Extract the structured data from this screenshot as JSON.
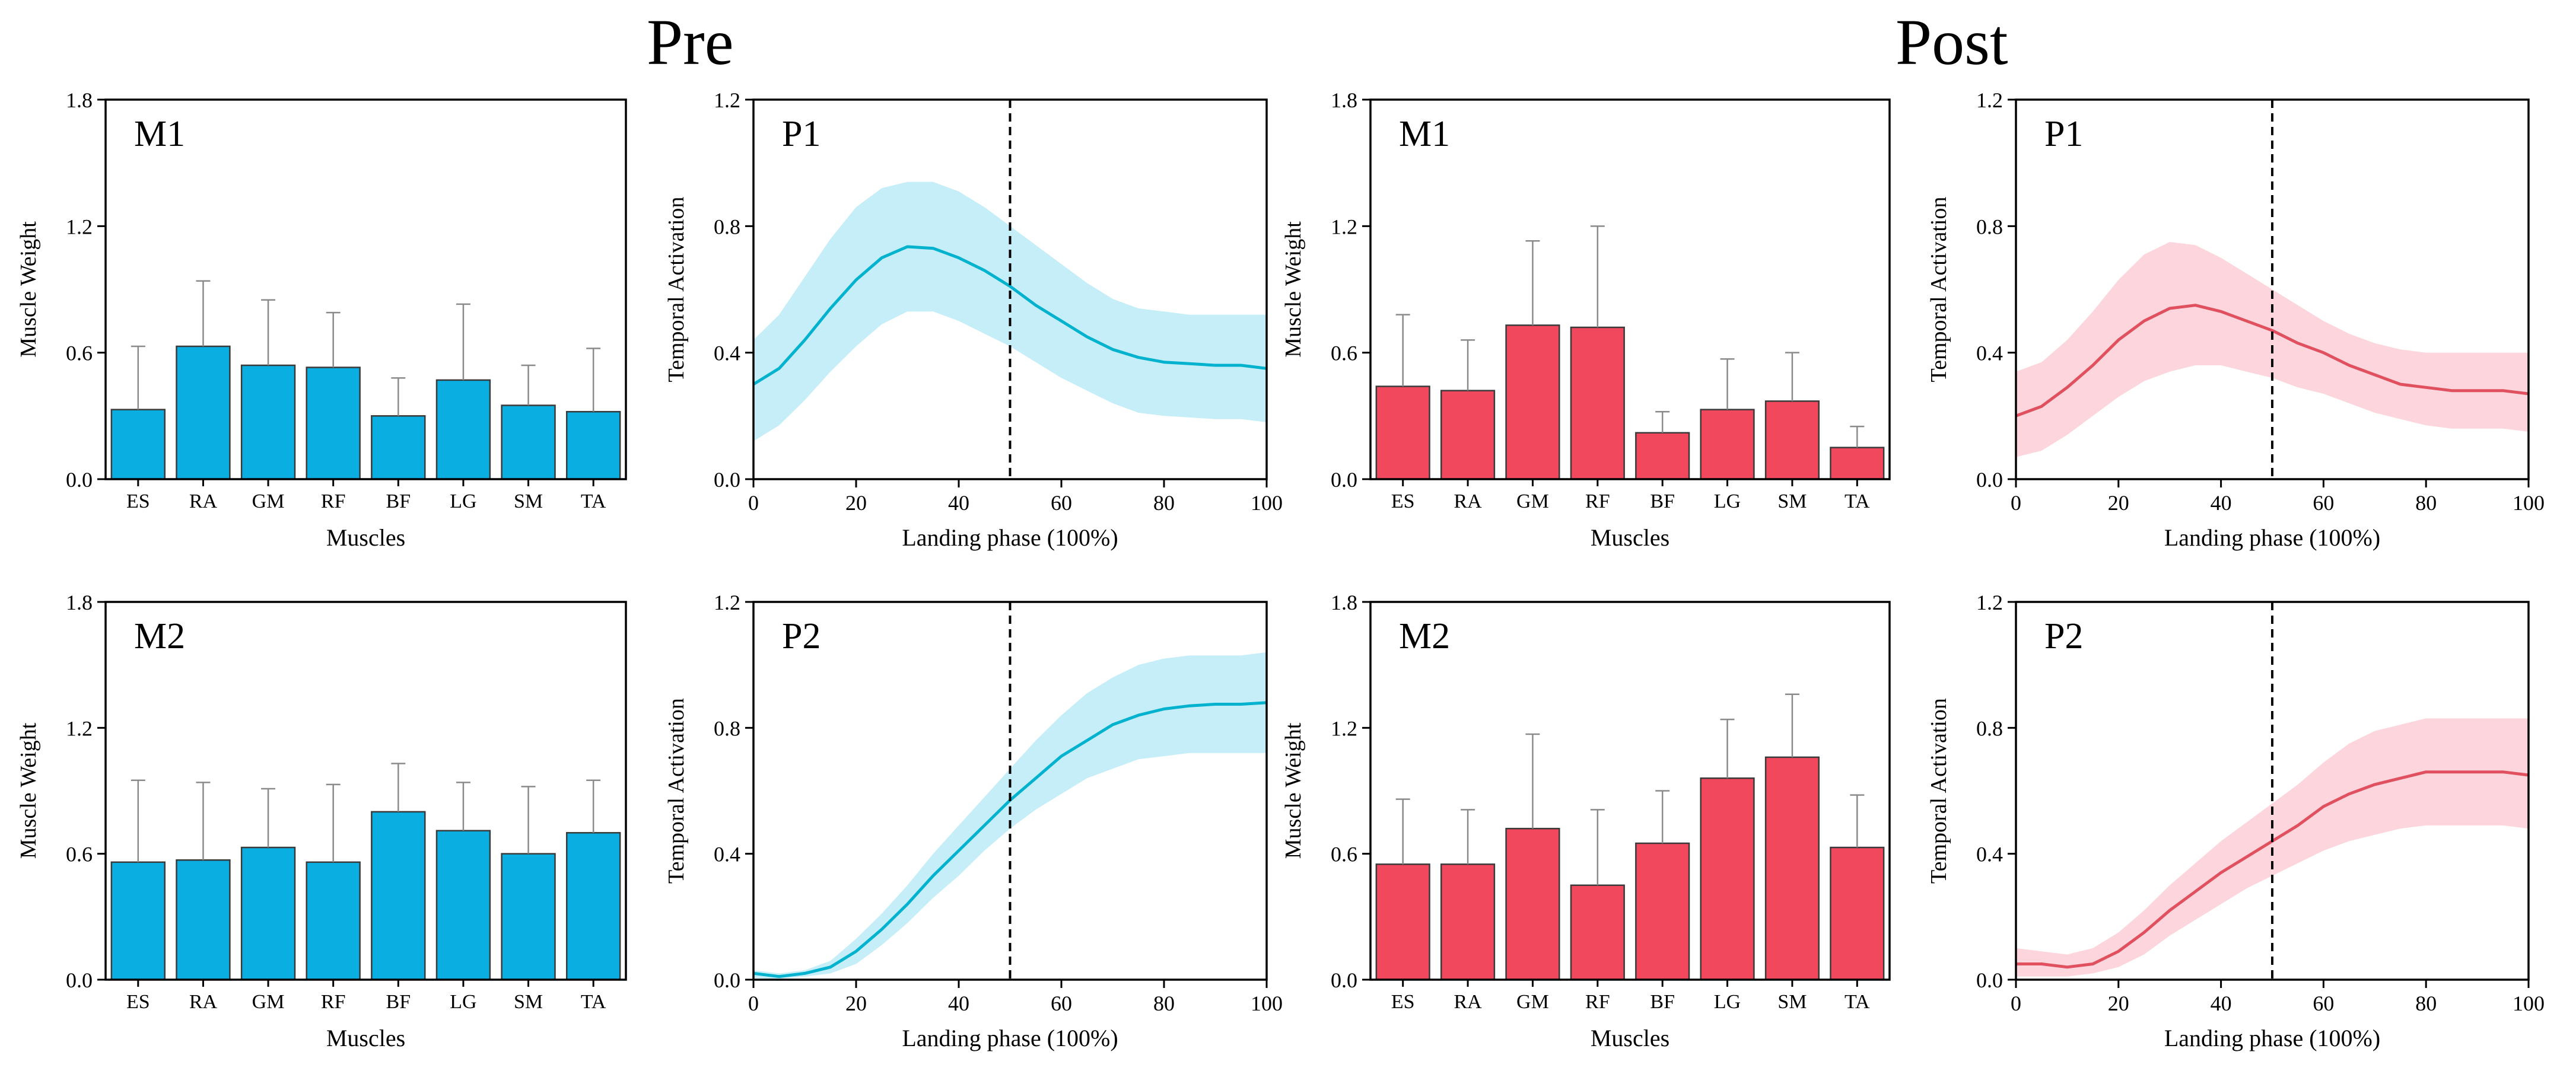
{
  "figure": {
    "group_titles": [
      "Pre",
      "Post"
    ]
  },
  "colors": {
    "pre_bar": "#0AAEE0",
    "pre_line": "#00B2CE",
    "pre_band": "#C6EEF8",
    "post_bar": "#F2485E",
    "post_line": "#E0505E",
    "post_band": "#FCD6DC"
  },
  "chart_data": [
    {
      "type": "bar",
      "group": "Pre",
      "title": "M1",
      "xlabel": "Muscles",
      "ylabel": "Muscle Weight",
      "ylim": [
        0,
        1.8
      ],
      "yticks": [
        "0.0",
        "0.6",
        "1.2",
        "1.8"
      ],
      "categories": [
        "ES",
        "RA",
        "GM",
        "RF",
        "BF",
        "LG",
        "SM",
        "TA"
      ],
      "values": [
        0.33,
        0.63,
        0.54,
        0.53,
        0.3,
        0.47,
        0.35,
        0.32
      ],
      "errors": [
        0.3,
        0.31,
        0.31,
        0.26,
        0.18,
        0.36,
        0.19,
        0.3
      ]
    },
    {
      "type": "line",
      "group": "Pre",
      "title": "P1",
      "xlabel": "Landing phase (100%)",
      "ylabel": "Temporal Activation",
      "xlim": [
        0,
        100
      ],
      "ylim": [
        0,
        1.2
      ],
      "xticks": [
        "0",
        "20",
        "40",
        "60",
        "80",
        "100"
      ],
      "yticks": [
        "0.0",
        "0.4",
        "0.8",
        "1.2"
      ],
      "vline": 50,
      "x": [
        0,
        5,
        10,
        15,
        20,
        25,
        30,
        35,
        40,
        45,
        50,
        55,
        60,
        65,
        70,
        75,
        80,
        85,
        90,
        95,
        100
      ],
      "mean": [
        0.3,
        0.35,
        0.44,
        0.54,
        0.63,
        0.7,
        0.735,
        0.73,
        0.7,
        0.66,
        0.61,
        0.55,
        0.5,
        0.45,
        0.41,
        0.385,
        0.37,
        0.365,
        0.36,
        0.36,
        0.35
      ],
      "upper": [
        0.44,
        0.52,
        0.64,
        0.76,
        0.86,
        0.92,
        0.94,
        0.94,
        0.91,
        0.86,
        0.8,
        0.74,
        0.68,
        0.62,
        0.57,
        0.54,
        0.53,
        0.52,
        0.52,
        0.52,
        0.52
      ],
      "lower": [
        0.12,
        0.17,
        0.25,
        0.34,
        0.42,
        0.49,
        0.53,
        0.53,
        0.5,
        0.46,
        0.42,
        0.37,
        0.32,
        0.28,
        0.24,
        0.21,
        0.2,
        0.195,
        0.19,
        0.19,
        0.18
      ]
    },
    {
      "type": "bar",
      "group": "Post",
      "title": "M1",
      "xlabel": "Muscles",
      "ylabel": "Muscle Weight",
      "ylim": [
        0,
        1.8
      ],
      "yticks": [
        "0.0",
        "0.6",
        "1.2",
        "1.8"
      ],
      "categories": [
        "ES",
        "RA",
        "GM",
        "RF",
        "BF",
        "LG",
        "SM",
        "TA"
      ],
      "values": [
        0.44,
        0.42,
        0.73,
        0.72,
        0.22,
        0.33,
        0.37,
        0.15
      ],
      "errors": [
        0.34,
        0.24,
        0.4,
        0.48,
        0.1,
        0.24,
        0.23,
        0.1
      ]
    },
    {
      "type": "line",
      "group": "Post",
      "title": "P1",
      "xlabel": "Landing phase (100%)",
      "ylabel": "Temporal Activation",
      "xlim": [
        0,
        100
      ],
      "ylim": [
        0,
        1.2
      ],
      "xticks": [
        "0",
        "20",
        "40",
        "60",
        "80",
        "100"
      ],
      "yticks": [
        "0.0",
        "0.4",
        "0.8",
        "1.2"
      ],
      "vline": 50,
      "x": [
        0,
        5,
        10,
        15,
        20,
        25,
        30,
        35,
        40,
        45,
        50,
        55,
        60,
        65,
        70,
        75,
        80,
        85,
        90,
        95,
        100
      ],
      "mean": [
        0.2,
        0.23,
        0.29,
        0.36,
        0.44,
        0.5,
        0.54,
        0.55,
        0.53,
        0.5,
        0.47,
        0.43,
        0.4,
        0.36,
        0.33,
        0.3,
        0.29,
        0.28,
        0.28,
        0.28,
        0.27
      ],
      "upper": [
        0.34,
        0.37,
        0.44,
        0.53,
        0.63,
        0.71,
        0.75,
        0.74,
        0.7,
        0.65,
        0.6,
        0.55,
        0.5,
        0.46,
        0.43,
        0.41,
        0.4,
        0.4,
        0.4,
        0.4,
        0.4
      ],
      "lower": [
        0.07,
        0.09,
        0.14,
        0.2,
        0.26,
        0.31,
        0.34,
        0.36,
        0.36,
        0.34,
        0.32,
        0.29,
        0.27,
        0.24,
        0.21,
        0.19,
        0.17,
        0.16,
        0.16,
        0.16,
        0.15
      ]
    },
    {
      "type": "bar",
      "group": "Pre",
      "title": "M2",
      "xlabel": "Muscles",
      "ylabel": "Muscle Weight",
      "ylim": [
        0,
        1.8
      ],
      "yticks": [
        "0.0",
        "0.6",
        "1.2",
        "1.8"
      ],
      "categories": [
        "ES",
        "RA",
        "GM",
        "RF",
        "BF",
        "LG",
        "SM",
        "TA"
      ],
      "values": [
        0.56,
        0.57,
        0.63,
        0.56,
        0.8,
        0.71,
        0.6,
        0.7
      ],
      "errors": [
        0.39,
        0.37,
        0.28,
        0.37,
        0.23,
        0.23,
        0.32,
        0.25
      ]
    },
    {
      "type": "line",
      "group": "Pre",
      "title": "P2",
      "xlabel": "Landing phase (100%)",
      "ylabel": "Temporal Activation",
      "xlim": [
        0,
        100
      ],
      "ylim": [
        0,
        1.2
      ],
      "xticks": [
        "0",
        "20",
        "40",
        "60",
        "80",
        "100"
      ],
      "yticks": [
        "0.0",
        "0.4",
        "0.8",
        "1.2"
      ],
      "vline": 50,
      "x": [
        0,
        5,
        10,
        15,
        20,
        25,
        30,
        35,
        40,
        45,
        50,
        55,
        60,
        65,
        70,
        75,
        80,
        85,
        90,
        95,
        100
      ],
      "mean": [
        0.02,
        0.01,
        0.02,
        0.04,
        0.09,
        0.16,
        0.24,
        0.33,
        0.41,
        0.49,
        0.57,
        0.64,
        0.71,
        0.76,
        0.81,
        0.84,
        0.86,
        0.87,
        0.875,
        0.875,
        0.88
      ],
      "upper": [
        0.03,
        0.02,
        0.03,
        0.06,
        0.13,
        0.21,
        0.3,
        0.4,
        0.49,
        0.58,
        0.67,
        0.76,
        0.84,
        0.91,
        0.96,
        1.0,
        1.02,
        1.03,
        1.03,
        1.03,
        1.04
      ],
      "lower": [
        0.005,
        0.003,
        0.01,
        0.02,
        0.05,
        0.11,
        0.18,
        0.26,
        0.33,
        0.41,
        0.48,
        0.54,
        0.59,
        0.64,
        0.67,
        0.7,
        0.71,
        0.72,
        0.72,
        0.72,
        0.72
      ]
    },
    {
      "type": "bar",
      "group": "Post",
      "title": "M2",
      "xlabel": "Muscles",
      "ylabel": "Muscle Weight",
      "ylim": [
        0,
        1.8
      ],
      "yticks": [
        "0.0",
        "0.6",
        "1.2",
        "1.8"
      ],
      "categories": [
        "ES",
        "RA",
        "GM",
        "RF",
        "BF",
        "LG",
        "SM",
        "TA"
      ],
      "values": [
        0.55,
        0.55,
        0.72,
        0.45,
        0.65,
        0.96,
        1.06,
        0.63
      ],
      "errors": [
        0.31,
        0.26,
        0.45,
        0.36,
        0.25,
        0.28,
        0.3,
        0.25
      ]
    },
    {
      "type": "line",
      "group": "Post",
      "title": "P2",
      "xlabel": "Landing phase (100%)",
      "ylabel": "Temporal Activation",
      "xlim": [
        0,
        100
      ],
      "ylim": [
        0,
        1.2
      ],
      "xticks": [
        "0",
        "20",
        "40",
        "60",
        "80",
        "100"
      ],
      "yticks": [
        "0.0",
        "0.4",
        "0.8",
        "1.2"
      ],
      "vline": 50,
      "x": [
        0,
        5,
        10,
        15,
        20,
        25,
        30,
        35,
        40,
        45,
        50,
        55,
        60,
        65,
        70,
        75,
        80,
        85,
        90,
        95,
        100
      ],
      "mean": [
        0.05,
        0.05,
        0.04,
        0.05,
        0.09,
        0.15,
        0.22,
        0.28,
        0.34,
        0.39,
        0.44,
        0.49,
        0.55,
        0.59,
        0.62,
        0.64,
        0.66,
        0.66,
        0.66,
        0.66,
        0.65
      ],
      "upper": [
        0.1,
        0.09,
        0.08,
        0.1,
        0.15,
        0.22,
        0.3,
        0.37,
        0.44,
        0.5,
        0.56,
        0.62,
        0.69,
        0.75,
        0.79,
        0.81,
        0.83,
        0.83,
        0.83,
        0.83,
        0.83
      ],
      "lower": [
        0.01,
        0.01,
        0.01,
        0.02,
        0.04,
        0.08,
        0.14,
        0.19,
        0.24,
        0.29,
        0.33,
        0.37,
        0.41,
        0.44,
        0.46,
        0.48,
        0.49,
        0.49,
        0.49,
        0.49,
        0.48
      ]
    }
  ]
}
